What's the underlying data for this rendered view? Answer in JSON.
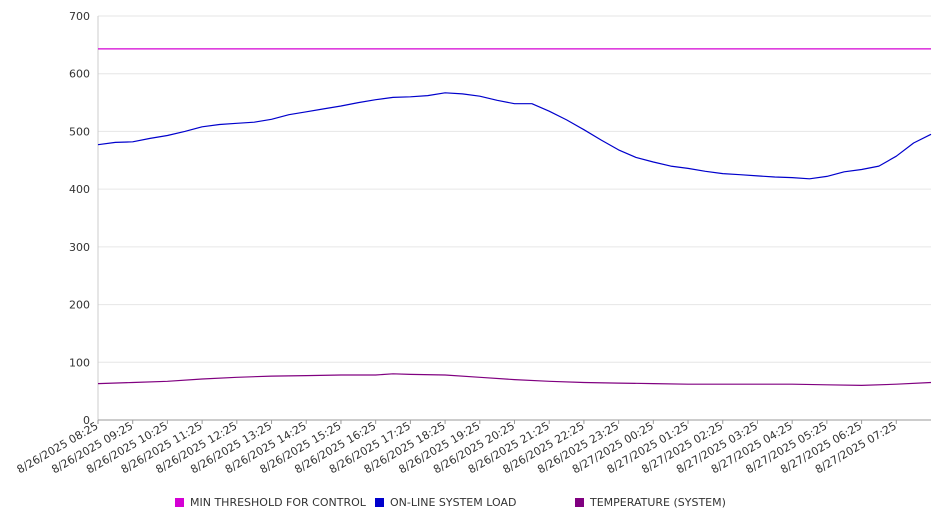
{
  "chart_data": {
    "type": "line",
    "title": "",
    "xlabel": "",
    "ylabel": "",
    "ylim": [
      0,
      700
    ],
    "yticks": [
      0,
      100,
      200,
      300,
      400,
      500,
      600,
      700
    ],
    "grid": true,
    "legend_position": "bottom",
    "x_tick_labels": [
      "8/26/2025 08:25",
      "8/26/2025 09:25",
      "8/26/2025 10:25",
      "8/26/2025 11:25",
      "8/26/2025 12:25",
      "8/26/2025 13:25",
      "8/26/2025 14:25",
      "8/26/2025 15:25",
      "8/26/2025 16:25",
      "8/26/2025 17:25",
      "8/26/2025 18:25",
      "8/26/2025 19:25",
      "8/26/2025 20:25",
      "8/26/2025 21:25",
      "8/26/2025 22:25",
      "8/26/2025 23:25",
      "8/27/2025 00:25",
      "8/27/2025 01:25",
      "8/27/2025 02:25",
      "8/27/2025 03:25",
      "8/27/2025 04:25",
      "8/27/2025 05:25",
      "8/27/2025 06:25",
      "8/27/2025 07:25"
    ],
    "x_range_hours": [
      0,
      24
    ],
    "series": [
      {
        "name": "MIN THRESHOLD FOR CONTROL",
        "color": "#d400d4",
        "x": [
          0,
          24
        ],
        "values": [
          643,
          643
        ]
      },
      {
        "name": "ON-LINE SYSTEM LOAD",
        "color": "#0000cc",
        "x": [
          0,
          0.5,
          1,
          1.5,
          2,
          2.5,
          3,
          3.5,
          4,
          4.5,
          5,
          5.5,
          6,
          6.5,
          7,
          7.5,
          8,
          8.5,
          9,
          9.5,
          10,
          10.5,
          11,
          11.5,
          12,
          12.5,
          13,
          13.5,
          14,
          14.5,
          15,
          15.5,
          16,
          16.5,
          17,
          17.5,
          18,
          18.5,
          19,
          19.5,
          20,
          20.5,
          21,
          21.5,
          22,
          22.5,
          23,
          23.5,
          24
        ],
        "values": [
          477,
          481,
          482,
          488,
          493,
          500,
          508,
          512,
          514,
          516,
          521,
          529,
          534,
          539,
          544,
          550,
          555,
          559,
          560,
          562,
          567,
          565,
          561,
          554,
          548,
          548,
          535,
          520,
          503,
          485,
          468,
          455,
          447,
          440,
          436,
          431,
          427,
          425,
          423,
          421,
          420,
          418,
          422,
          430,
          434,
          440,
          457,
          480,
          495
        ]
      },
      {
        "name": "TEMPERATURE (SYSTEM)",
        "color": "#800080",
        "x": [
          0,
          1,
          2,
          3,
          4,
          5,
          6,
          7,
          8,
          8.5,
          9,
          10,
          11,
          12,
          13,
          14,
          15,
          16,
          17,
          18,
          19,
          20,
          21,
          22,
          23,
          24
        ],
        "values": [
          63,
          65,
          67,
          71,
          74,
          76,
          77,
          78,
          78,
          80,
          79,
          78,
          74,
          70,
          67,
          65,
          64,
          63,
          62,
          62,
          62,
          62,
          61,
          60,
          62,
          65
        ]
      }
    ]
  }
}
